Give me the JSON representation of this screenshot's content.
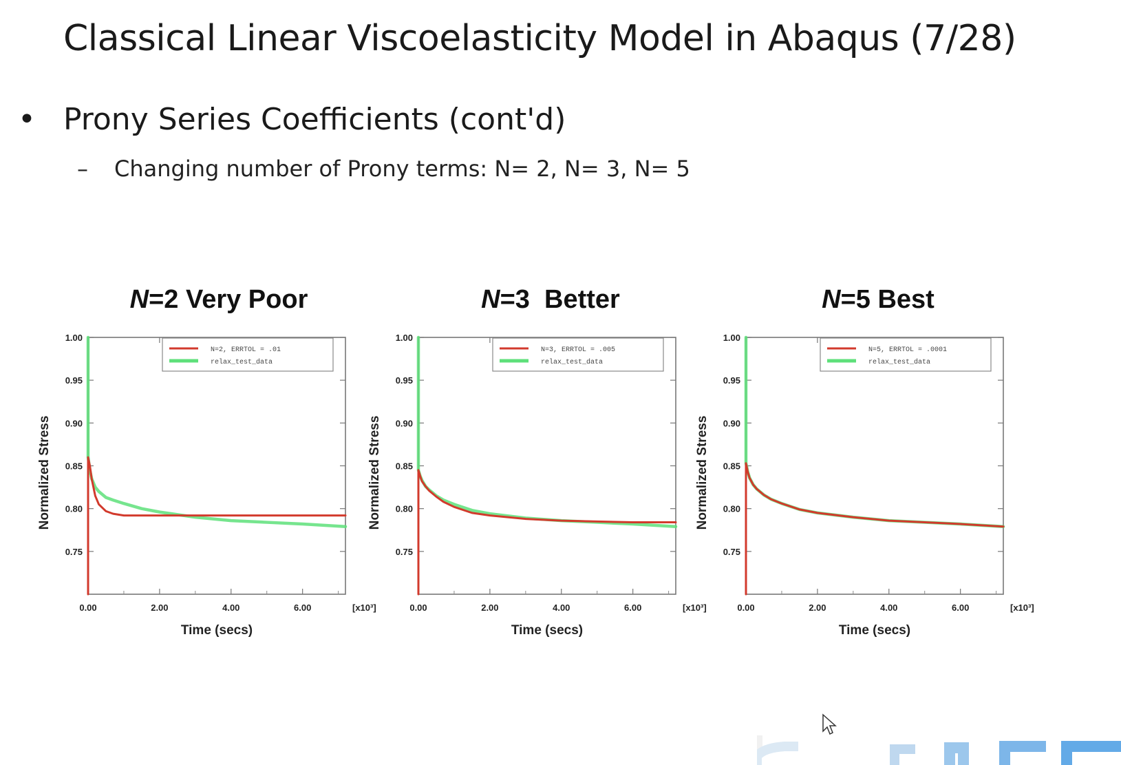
{
  "slide": {
    "title": "Classical Linear Viscoelasticity Model in Abaqus (7/28)",
    "bullet_symbol": "•",
    "bullet": "Prony Series Coefficients (cont'd)",
    "sub_dash": "–",
    "sub_bullet": "Changing number of Prony terms: N= 2, N= 3, N= 5"
  },
  "colors": {
    "fit": "#d23a2c",
    "test": "#5ee07a",
    "accent_logo": "#4aa8e6"
  },
  "chart_data": [
    {
      "type": "line",
      "title_var": "N",
      "title_rest": "=2 Very Poor",
      "xlabel": "Time (secs)",
      "ylabel": "Normalized Stress",
      "x_multiplier": "[x10³]",
      "xlim": [
        0,
        7.2
      ],
      "ylim": [
        0.7,
        1.0
      ],
      "xticks": [
        "0.00",
        "2.00",
        "4.00",
        "6.00"
      ],
      "yticks": [
        "1.00",
        "0.95",
        "0.90",
        "0.85",
        "0.80",
        "0.75"
      ],
      "legend_position": "top-right",
      "series": [
        {
          "name": "N=2, ERRTOL = .01",
          "color": "#d23a2c",
          "x": [
            0,
            0,
            0.05,
            0.1,
            0.2,
            0.3,
            0.5,
            0.7,
            1.0,
            1.5,
            2.0,
            3.0,
            4.0,
            5.0,
            6.0,
            7.2
          ],
          "y": [
            0.7,
            0.86,
            0.85,
            0.835,
            0.815,
            0.805,
            0.797,
            0.794,
            0.792,
            0.792,
            0.792,
            0.792,
            0.792,
            0.792,
            0.792,
            0.792
          ]
        },
        {
          "name": "relax_test_data",
          "color": "#5ee07a",
          "x": [
            0,
            0,
            0.05,
            0.1,
            0.2,
            0.3,
            0.5,
            0.7,
            1.0,
            1.5,
            2.0,
            3.0,
            4.0,
            5.0,
            6.0,
            7.2
          ],
          "y": [
            1.0,
            0.86,
            0.845,
            0.835,
            0.825,
            0.82,
            0.813,
            0.81,
            0.806,
            0.8,
            0.796,
            0.79,
            0.786,
            0.784,
            0.782,
            0.779
          ]
        }
      ]
    },
    {
      "type": "line",
      "title_var": "N",
      "title_rest": "=3  Better",
      "xlabel": "Time (secs)",
      "ylabel": "Normalized Stress",
      "x_multiplier": "[x10³]",
      "xlim": [
        0,
        7.2
      ],
      "ylim": [
        0.7,
        1.0
      ],
      "xticks": [
        "0.00",
        "2.00",
        "4.00",
        "6.00"
      ],
      "yticks": [
        "1.00",
        "0.95",
        "0.90",
        "0.85",
        "0.80",
        "0.75"
      ],
      "legend_position": "top-right",
      "series": [
        {
          "name": "N=3, ERRTOL = .005",
          "color": "#d23a2c",
          "x": [
            0,
            0,
            0.05,
            0.1,
            0.2,
            0.3,
            0.5,
            0.7,
            1.0,
            1.5,
            2.0,
            3.0,
            4.0,
            5.0,
            6.0,
            7.2
          ],
          "y": [
            0.7,
            0.845,
            0.838,
            0.832,
            0.826,
            0.821,
            0.814,
            0.808,
            0.802,
            0.795,
            0.792,
            0.788,
            0.786,
            0.785,
            0.784,
            0.784
          ]
        },
        {
          "name": "relax_test_data",
          "color": "#5ee07a",
          "x": [
            0,
            0,
            0.05,
            0.1,
            0.2,
            0.3,
            0.5,
            0.7,
            1.0,
            1.5,
            2.0,
            3.0,
            4.0,
            5.0,
            6.0,
            7.2
          ],
          "y": [
            1.0,
            0.845,
            0.838,
            0.833,
            0.826,
            0.822,
            0.815,
            0.81,
            0.805,
            0.798,
            0.794,
            0.789,
            0.786,
            0.784,
            0.782,
            0.779
          ]
        }
      ]
    },
    {
      "type": "line",
      "title_var": "N",
      "title_rest": "=5 Best",
      "xlabel": "Time (secs)",
      "ylabel": "Normalized Stress",
      "x_multiplier": "[x10³]",
      "xlim": [
        0,
        7.2
      ],
      "ylim": [
        0.7,
        1.0
      ],
      "xticks": [
        "0.00",
        "2.00",
        "4.00",
        "6.00"
      ],
      "yticks": [
        "1.00",
        "0.95",
        "0.90",
        "0.85",
        "0.80",
        "0.75"
      ],
      "legend_position": "top-right",
      "series": [
        {
          "name": "N=5, ERRTOL = .0001",
          "color": "#d23a2c",
          "x": [
            0,
            0,
            0.05,
            0.1,
            0.2,
            0.3,
            0.5,
            0.7,
            1.0,
            1.5,
            2.0,
            3.0,
            4.0,
            5.0,
            6.0,
            7.2
          ],
          "y": [
            0.7,
            0.853,
            0.843,
            0.836,
            0.828,
            0.823,
            0.816,
            0.811,
            0.806,
            0.799,
            0.795,
            0.79,
            0.786,
            0.784,
            0.782,
            0.779
          ]
        },
        {
          "name": "relax_test_data",
          "color": "#5ee07a",
          "x": [
            0,
            0,
            0.05,
            0.1,
            0.2,
            0.3,
            0.5,
            0.7,
            1.0,
            1.5,
            2.0,
            3.0,
            4.0,
            5.0,
            6.0,
            7.2
          ],
          "y": [
            1.0,
            0.853,
            0.843,
            0.836,
            0.828,
            0.823,
            0.816,
            0.811,
            0.806,
            0.799,
            0.795,
            0.79,
            0.786,
            0.784,
            0.782,
            0.779
          ]
        }
      ]
    }
  ]
}
